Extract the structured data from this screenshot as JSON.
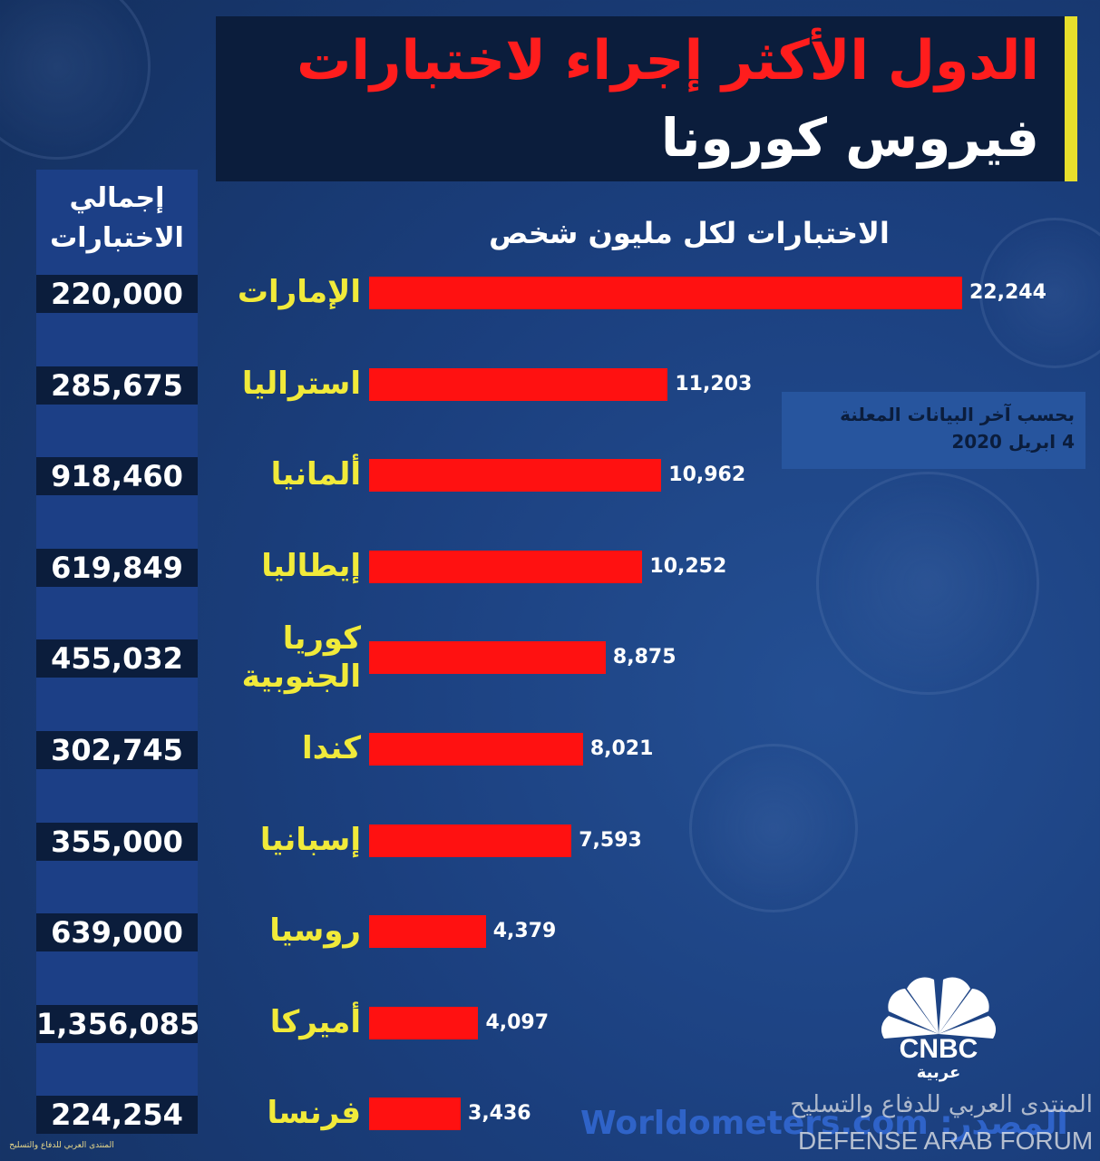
{
  "title": {
    "line1": "الدول الأكثر إجراء لاختبارات",
    "line2": "فيروس كورونا"
  },
  "left_header": {
    "line1": "إجمالي",
    "line2": "الاختبارات"
  },
  "note": {
    "line1": "بحسب آخر البيانات المعلنة",
    "line2": "4 ابريل 2020"
  },
  "source": {
    "label": "المصدر:",
    "site": "Worldometers.com"
  },
  "logo": {
    "name": "CNBC",
    "sub": "عربية"
  },
  "watermark": {
    "arabic": "المنتدى العربي للدفاع والتسليح",
    "english": "DEFENSE ARAB FORUM",
    "small": "المنتدى العربي للدفاع والتسليح"
  },
  "colors": {
    "bar": "#ff1111",
    "title_red": "#ff1d1d",
    "country_yellow": "#f1ea3a",
    "panel": "#0b1d3c"
  },
  "chart_data": {
    "type": "bar",
    "title": "الاختبارات لكل مليون شخص",
    "categories": [
      "الإمارات",
      "استراليا",
      "ألمانيا",
      "إيطاليا",
      "كوريا الجنوبية",
      "كندا",
      "إسبانيا",
      "روسيا",
      "أميركا",
      "فرنسا"
    ],
    "values": [
      22244,
      11203,
      10962,
      10252,
      8875,
      8021,
      7593,
      4379,
      4097,
      3436
    ],
    "value_labels": [
      "22,244",
      "11,203",
      "10,962",
      "10,252",
      "8,875",
      "8,021",
      "7,593",
      "4,379",
      "4,097",
      "3,436"
    ],
    "totals": [
      "220,000",
      "285,675",
      "918,460",
      "619,849",
      "455,032",
      "302,745",
      "355,000",
      "639,000",
      "1,356,085",
      "224,254"
    ],
    "orientation": "horizontal",
    "xlim": [
      0,
      22244
    ]
  }
}
